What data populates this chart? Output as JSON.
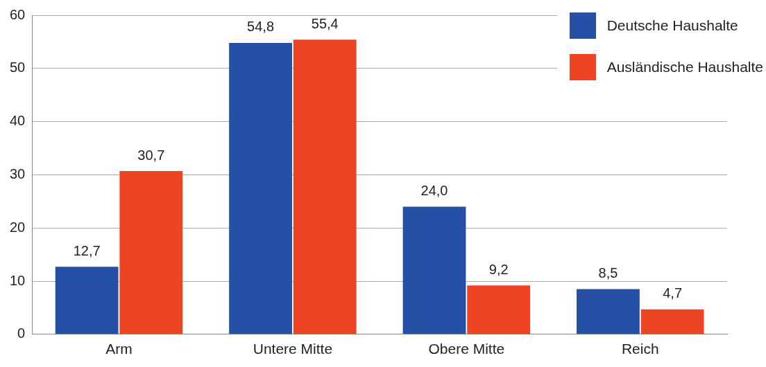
{
  "chart_data": {
    "type": "bar",
    "categories": [
      "Arm",
      "Untere Mitte",
      "Obere Mitte",
      "Reich"
    ],
    "series": [
      {
        "name": "Deutsche Haushalte",
        "color": "#2550a5",
        "values": [
          12.7,
          54.8,
          24.0,
          8.5
        ],
        "value_labels": [
          "12,7",
          "54,8",
          "24,0",
          "8,5"
        ]
      },
      {
        "name": "Ausländische Haushalte",
        "color": "#ef4423",
        "values": [
          30.7,
          55.4,
          9.2,
          4.7
        ],
        "value_labels": [
          "30,7",
          "55,4",
          "9,2",
          "4,7"
        ]
      }
    ],
    "ylim": [
      0,
      60
    ],
    "yticks": [
      0,
      10,
      20,
      30,
      40,
      50,
      60
    ],
    "grid": "y",
    "legend": "top right"
  }
}
